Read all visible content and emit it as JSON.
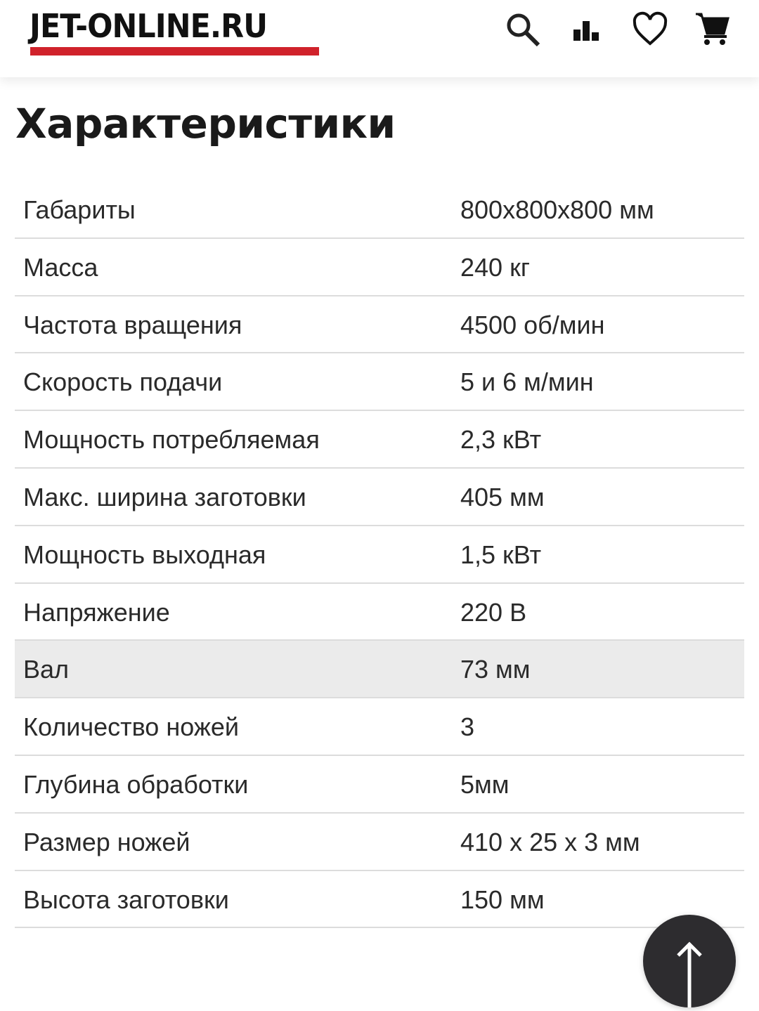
{
  "header": {
    "logo": "JET-ONLINE.RU",
    "brand_color": "#d0222b",
    "icons": [
      "search-icon",
      "compare-icon",
      "heart-icon",
      "cart-icon"
    ]
  },
  "title": "Характеристики",
  "specs": [
    {
      "label": "Габариты",
      "value": "800x800x800 мм"
    },
    {
      "label": "Масса",
      "value": "240 кг"
    },
    {
      "label": "Частота вращения",
      "value": "4500 об/мин"
    },
    {
      "label": "Скорость подачи",
      "value": "5 и 6 м/мин"
    },
    {
      "label": "Мощность потребляемая",
      "value": "2,3 кВт"
    },
    {
      "label": "Макс. ширина заготовки",
      "value": "405 мм"
    },
    {
      "label": "Мощность выходная",
      "value": "1,5 кВт"
    },
    {
      "label": "Напряжение",
      "value": "220 В"
    },
    {
      "label": "Вал",
      "value": "73 мм",
      "highlighted": true
    },
    {
      "label": "Количество ножей",
      "value": "3"
    },
    {
      "label": "Глубина обработки",
      "value": "5мм"
    },
    {
      "label": "Размер ножей",
      "value": "410 x 25 x 3 мм"
    },
    {
      "label": "Высота заготовки",
      "value": "150 мм"
    }
  ],
  "scroll_top_icon": "arrow-up-icon"
}
